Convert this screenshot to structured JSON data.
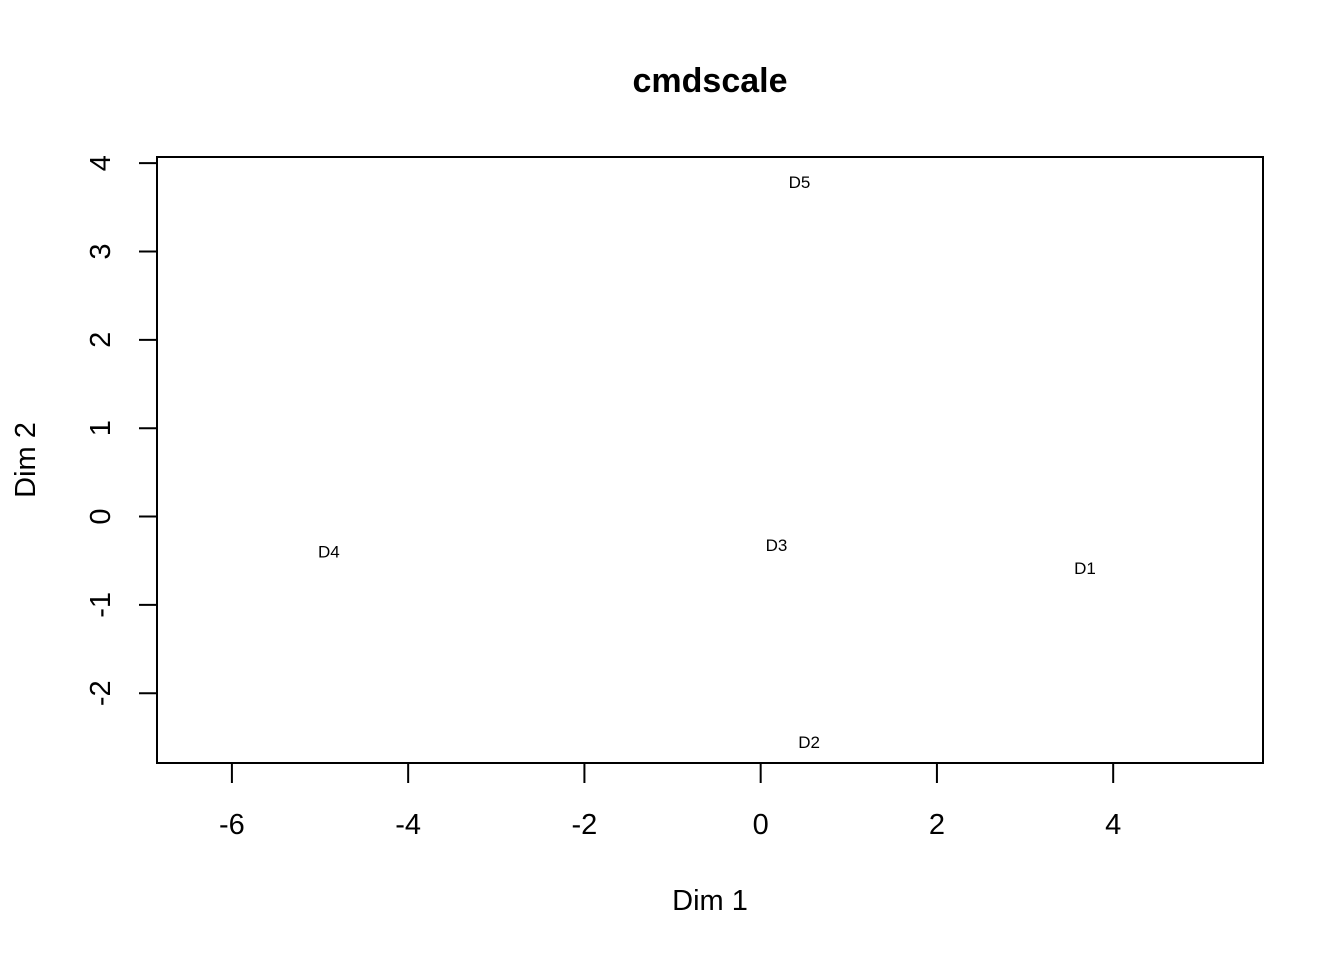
{
  "chart_data": {
    "type": "scatter",
    "title": "cmdscale",
    "xlabel": "Dim 1",
    "ylabel": "Dim 2",
    "xlim": [
      -6.85,
      5.7
    ],
    "ylim": [
      -2.79,
      4.07
    ],
    "xticks": [
      -6,
      -4,
      -2,
      0,
      2,
      4
    ],
    "yticks": [
      -2,
      -1,
      0,
      1,
      2,
      3,
      4
    ],
    "xtick_labels": [
      "-6",
      "-4",
      "-2",
      "0",
      "2",
      "4"
    ],
    "ytick_labels": [
      "-2",
      "-1",
      "0",
      "1",
      "2",
      "3",
      "4"
    ],
    "grid": false,
    "points": [
      {
        "label": "D1",
        "x": 3.68,
        "y": -0.59
      },
      {
        "label": "D2",
        "x": 0.55,
        "y": -2.56
      },
      {
        "label": "D3",
        "x": 0.18,
        "y": -0.33
      },
      {
        "label": "D4",
        "x": -4.9,
        "y": -0.4
      },
      {
        "label": "D5",
        "x": 0.44,
        "y": 3.78
      }
    ]
  }
}
